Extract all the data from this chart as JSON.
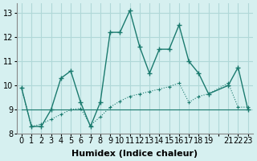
{
  "xlabel": "Humidex (Indice chaleur)",
  "ylabel": "",
  "background_color": "#d6f0f0",
  "grid_color": "#b0d8d8",
  "line_color": "#1a7a6e",
  "xlim": [
    -0.5,
    23.5
  ],
  "ylim": [
    8,
    13.4
  ],
  "yticks": [
    8,
    9,
    10,
    11,
    12,
    13
  ],
  "xticks": [
    0,
    1,
    2,
    3,
    4,
    5,
    6,
    7,
    8,
    9,
    10,
    11,
    12,
    13,
    14,
    15,
    16,
    17,
    18,
    19,
    20,
    21,
    22,
    23
  ],
  "xtick_labels": [
    "0",
    "1",
    "2",
    "3",
    "4",
    "5",
    "6",
    "7",
    "8",
    "9",
    "10",
    "11",
    "12",
    "13",
    "14",
    "15",
    "16",
    "17",
    "18",
    "19",
    "",
    "21",
    "22",
    "23"
  ],
  "series1_x": [
    0,
    1,
    2,
    3,
    4,
    5,
    6,
    7,
    8,
    9,
    10,
    11,
    12,
    13,
    14,
    15,
    16,
    17,
    18,
    19,
    21,
    22,
    23
  ],
  "series1_y": [
    9.9,
    8.3,
    8.3,
    9.0,
    10.3,
    10.6,
    9.3,
    8.3,
    9.3,
    12.2,
    12.2,
    13.1,
    11.6,
    10.5,
    11.5,
    11.5,
    12.5,
    11.0,
    10.5,
    9.65,
    10.0,
    10.75,
    9.0
  ],
  "series2_x": [
    0,
    1,
    2,
    3,
    4,
    5,
    6,
    7,
    8,
    9,
    10,
    11,
    12,
    13,
    14,
    15,
    16,
    17,
    18,
    19,
    21,
    22,
    23
  ],
  "series2_y": [
    9.9,
    8.3,
    8.4,
    8.6,
    8.8,
    9.0,
    9.05,
    8.35,
    8.7,
    9.1,
    9.35,
    9.55,
    9.65,
    9.75,
    9.85,
    9.95,
    10.1,
    9.3,
    9.55,
    9.65,
    10.1,
    9.1,
    9.1
  ],
  "series3_x": [
    0,
    23
  ],
  "series3_y": [
    9.0,
    9.0
  ],
  "fontsize_ticks": 7,
  "fontsize_label": 8
}
